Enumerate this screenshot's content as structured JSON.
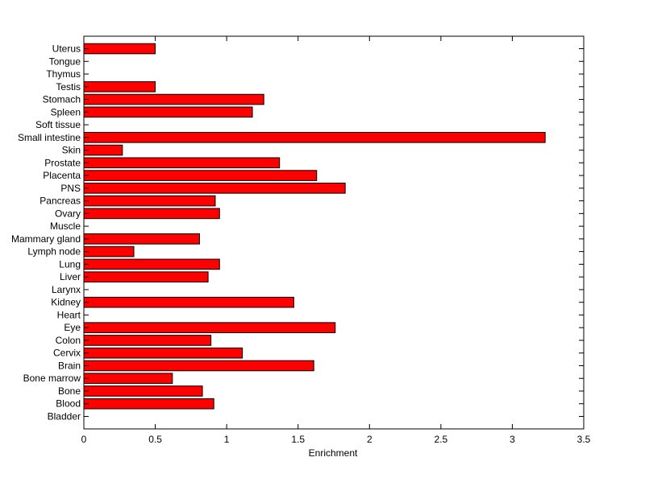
{
  "chart_data": {
    "type": "bar",
    "orientation": "horizontal",
    "categories": [
      "Uterus",
      "Tongue",
      "Thymus",
      "Testis",
      "Stomach",
      "Spleen",
      "Soft tissue",
      "Small intestine",
      "Skin",
      "Prostate",
      "Placenta",
      "PNS",
      "Pancreas",
      "Ovary",
      "Muscle",
      "Mammary gland",
      "Lymph node",
      "Lung",
      "Liver",
      "Larynx",
      "Kidney",
      "Heart",
      "Eye",
      "Colon",
      "Cervix",
      "Brain",
      "Bone marrow",
      "Bone",
      "Blood",
      "Bladder"
    ],
    "values": [
      0.5,
      0,
      0,
      0.5,
      1.26,
      1.18,
      0,
      3.23,
      0.27,
      1.37,
      1.63,
      1.83,
      0.92,
      0.95,
      0,
      0.81,
      0.35,
      0.95,
      0.87,
      0,
      1.47,
      0,
      1.76,
      0.89,
      1.11,
      1.61,
      0.62,
      0.83,
      0.91,
      0
    ],
    "xlabel": "Enrichment",
    "ylabel": "",
    "title": "",
    "xlim": [
      0,
      3.5
    ],
    "xticks": [
      "0",
      "0.5",
      "1",
      "1.5",
      "2",
      "2.5",
      "3",
      "3.5"
    ],
    "grid": false,
    "bar_color": "#ff0000",
    "bar_edge_color": "#000000"
  }
}
